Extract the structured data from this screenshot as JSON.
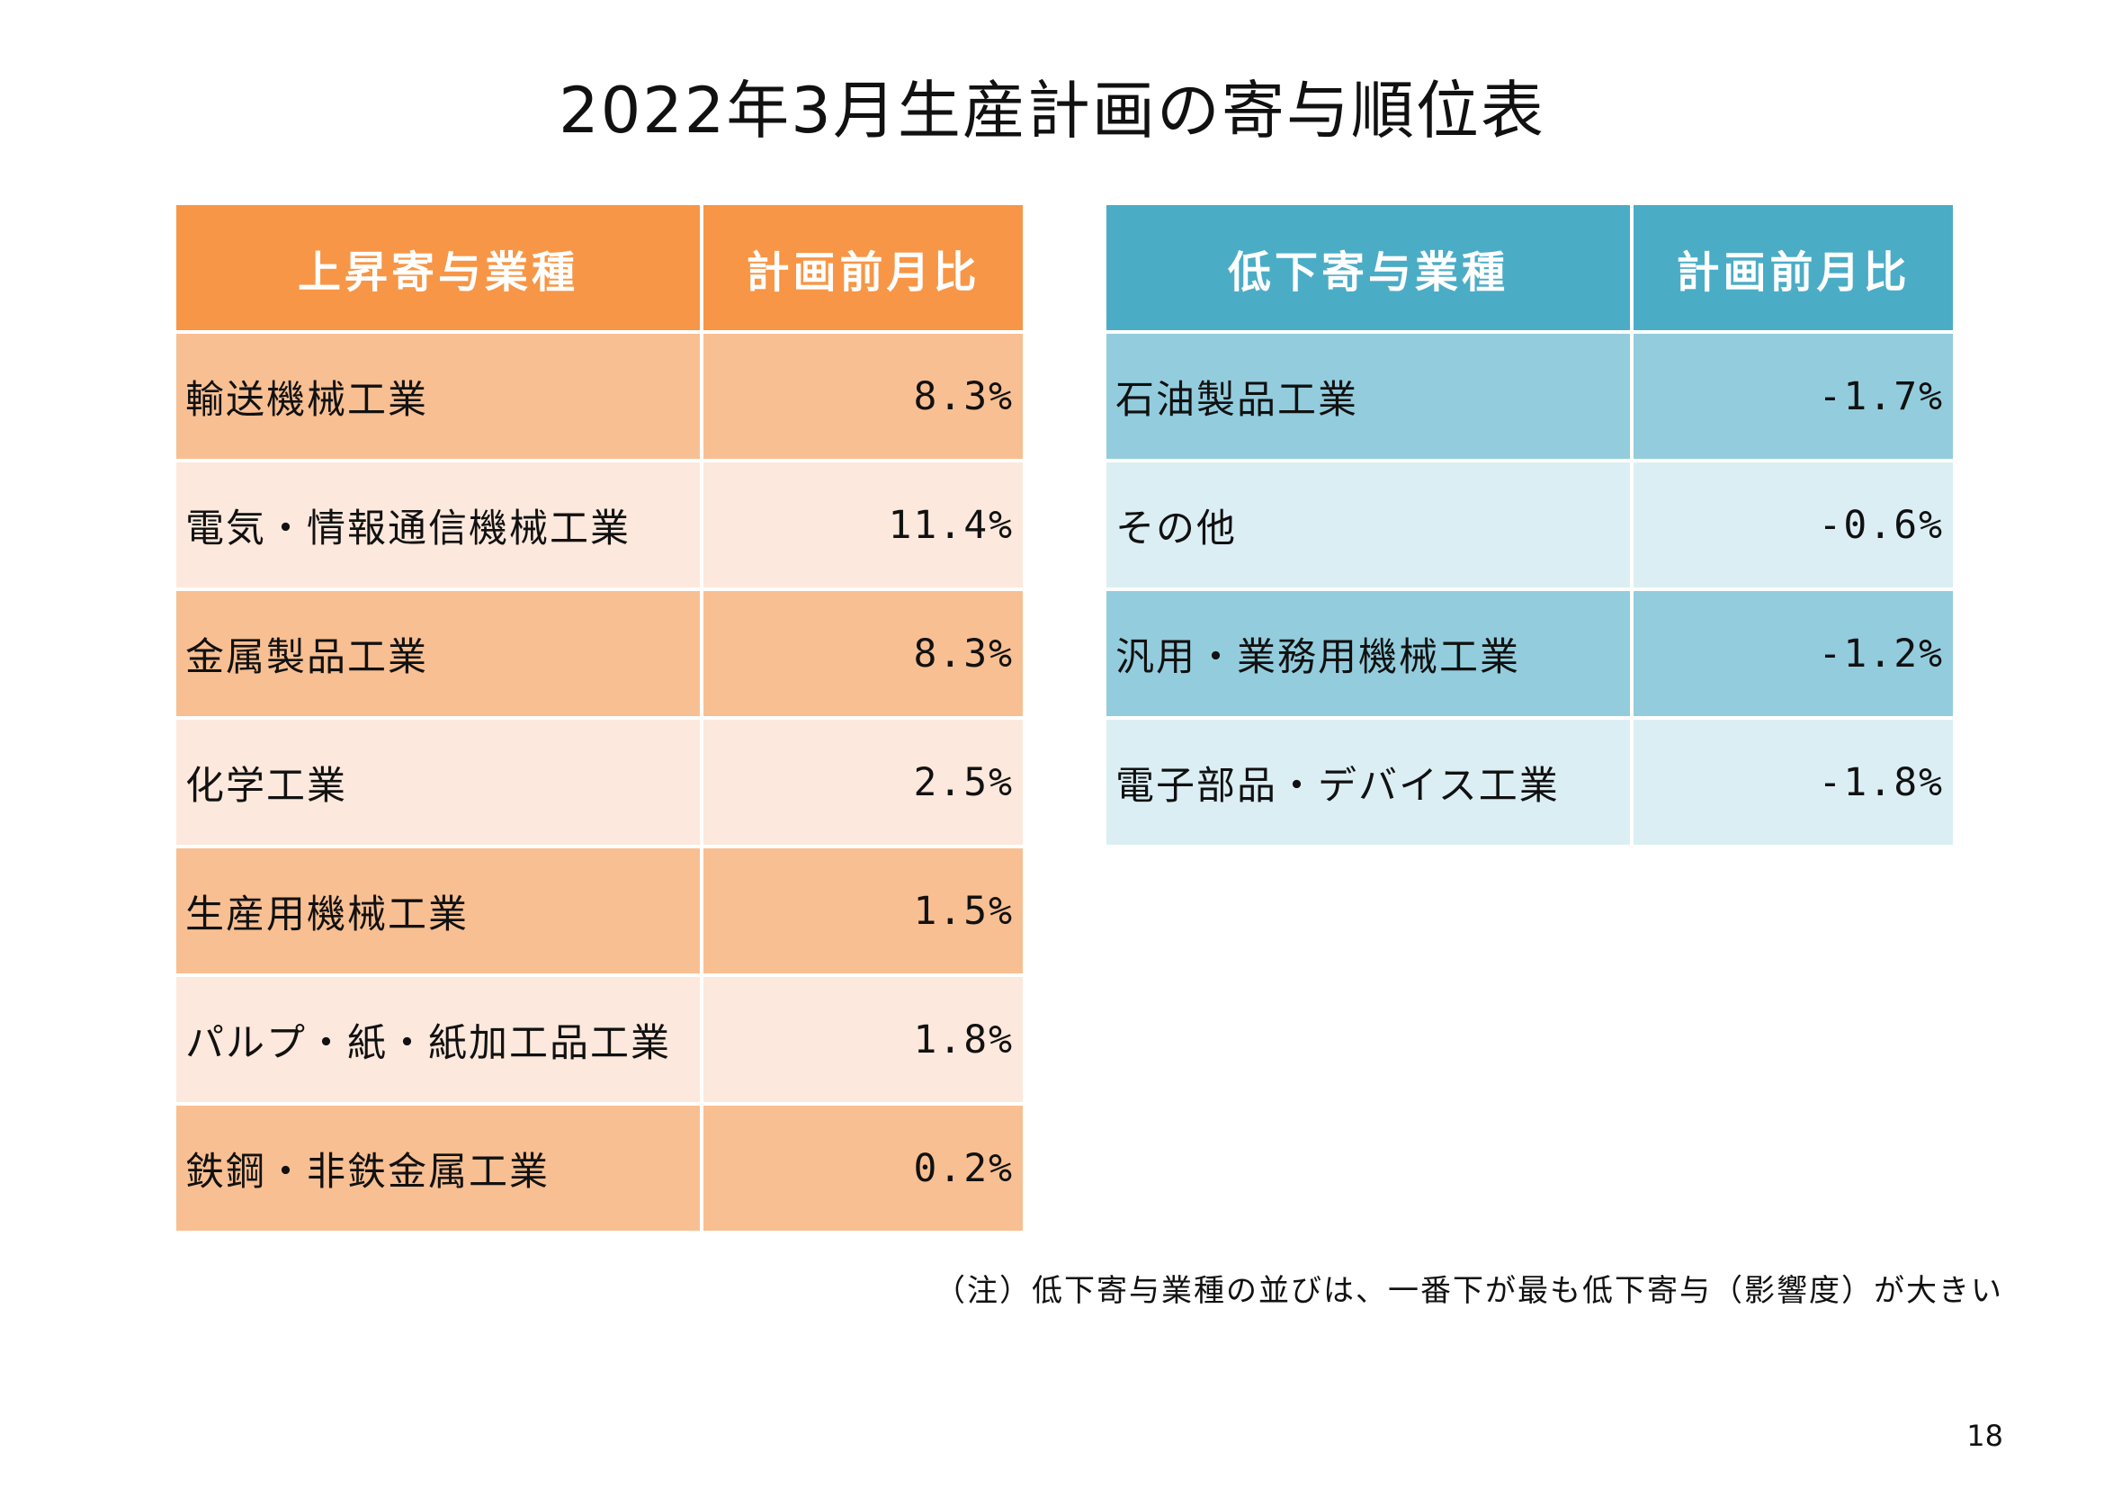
{
  "title": "2022年3月生産計画の寄与順位表",
  "rising": {
    "header_industry": "上昇寄与業種",
    "header_ratio": "計画前月比",
    "rows": [
      {
        "industry": "輸送機械工業",
        "ratio": "8.3%"
      },
      {
        "industry": "電気・情報通信機械工業",
        "ratio": "11.4%"
      },
      {
        "industry": "金属製品工業",
        "ratio": "8.3%"
      },
      {
        "industry": "化学工業",
        "ratio": "2.5%"
      },
      {
        "industry": "生産用機械工業",
        "ratio": "1.5%"
      },
      {
        "industry": "パルプ・紙・紙加工品工業",
        "ratio": "1.8%"
      },
      {
        "industry": "鉄鋼・非鉄金属工業",
        "ratio": "0.2%"
      }
    ],
    "colors": {
      "header": "#f79646",
      "row_dark": "#f8bf92",
      "row_light": "#fce8dc"
    }
  },
  "falling": {
    "header_industry": "低下寄与業種",
    "header_ratio": "計画前月比",
    "rows": [
      {
        "industry": "石油製品工業",
        "ratio": "-1.7%"
      },
      {
        "industry": "その他",
        "ratio": "-0.6%"
      },
      {
        "industry": "汎用・業務用機械工業",
        "ratio": "-1.2%"
      },
      {
        "industry": "電子部品・デバイス工業",
        "ratio": "-1.8%"
      }
    ],
    "colors": {
      "header": "#4bacc6",
      "row_dark": "#93cddd",
      "row_light": "#dbeef4"
    }
  },
  "note": "（注）低下寄与業種の並びは、一番下が最も低下寄与（影響度）が大きい",
  "page_number": "18"
}
